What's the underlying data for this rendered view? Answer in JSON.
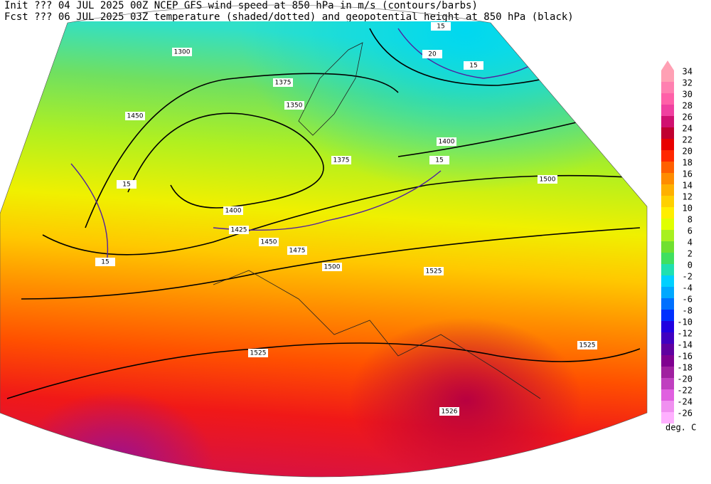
{
  "header": {
    "line1": "Init  ??? 04 JUL 2025 00Z  NCEP GFS wind speed at 850 hPa in m/s (contours/barbs)",
    "line2": "Fcst ??? 06 JUL 2025 03Z  temperature (shaded/dotted) and geopotential height at 850 hPa (black)"
  },
  "colorbar": {
    "levels": [
      {
        "value": 34,
        "color": "#ffa0b4"
      },
      {
        "value": 32,
        "color": "#ff80b0"
      },
      {
        "value": 30,
        "color": "#ff60a8"
      },
      {
        "value": 28,
        "color": "#f040a0"
      },
      {
        "value": 26,
        "color": "#d01070"
      },
      {
        "value": 24,
        "color": "#c00030"
      },
      {
        "value": 22,
        "color": "#e80000"
      },
      {
        "value": 20,
        "color": "#ff2800"
      },
      {
        "value": 18,
        "color": "#ff6000"
      },
      {
        "value": 16,
        "color": "#ff8c00"
      },
      {
        "value": 14,
        "color": "#ffb000"
      },
      {
        "value": 12,
        "color": "#ffd000"
      },
      {
        "value": 10,
        "color": "#ffee00"
      },
      {
        "value": 8,
        "color": "#e0ff00"
      },
      {
        "value": 6,
        "color": "#a8f020"
      },
      {
        "value": 4,
        "color": "#70e030"
      },
      {
        "value": 2,
        "color": "#40e060"
      },
      {
        "value": 0,
        "color": "#20e0b0"
      },
      {
        "value": -2,
        "color": "#00d0ff"
      },
      {
        "value": -4,
        "color": "#00a8ff"
      },
      {
        "value": -6,
        "color": "#0070ff"
      },
      {
        "value": -8,
        "color": "#0030ff"
      },
      {
        "value": -10,
        "color": "#2000e0"
      },
      {
        "value": -12,
        "color": "#4000c0"
      },
      {
        "value": -14,
        "color": "#6000a0"
      },
      {
        "value": -16,
        "color": "#800090"
      },
      {
        "value": -18,
        "color": "#a020a0"
      },
      {
        "value": -20,
        "color": "#c040c0"
      },
      {
        "value": -22,
        "color": "#e060e0"
      },
      {
        "value": -24,
        "color": "#f090f0"
      },
      {
        "value": -26,
        "color": "#ffb0ff"
      }
    ],
    "unit": "deg. C"
  },
  "contour_labels": [
    "1375",
    "1350",
    "1450",
    "1400",
    "1375",
    "1500",
    "1400",
    "1425",
    "1450",
    "1475",
    "1500",
    "1525",
    "1525",
    "1525",
    "1526",
    "1300",
    "15",
    "20",
    "15",
    "15",
    "15",
    "15"
  ]
}
